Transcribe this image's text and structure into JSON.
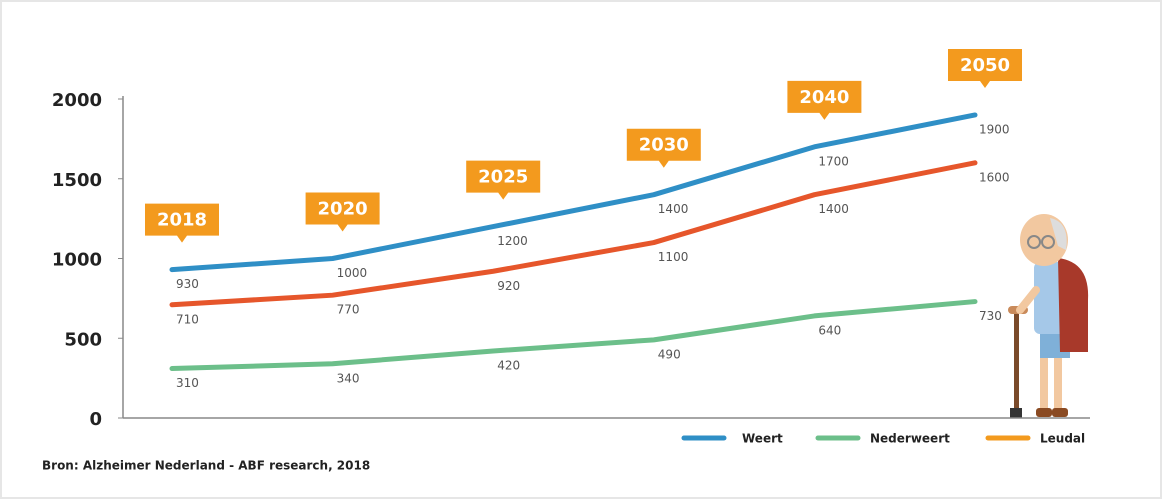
{
  "chart_data": {
    "type": "line",
    "categories": [
      "2018",
      "2020",
      "2025",
      "2030",
      "2040",
      "2050"
    ],
    "series": [
      {
        "name": "Weert",
        "color": "#2f8fc6",
        "legend_color": "#2f8fc6",
        "values": [
          930,
          1000,
          1200,
          1400,
          1700,
          1900
        ]
      },
      {
        "name": "Nederweert",
        "color": "#6cbf8a",
        "legend_color": "#6cbf8a",
        "values": [
          310,
          340,
          420,
          490,
          640,
          730
        ]
      },
      {
        "name": "Leudal",
        "color": "#e6562b",
        "legend_color": "#f39a1e",
        "values": [
          710,
          770,
          920,
          1100,
          1400,
          1600
        ]
      }
    ],
    "ylim": [
      0,
      2000
    ],
    "yticks": [
      0,
      500,
      1000,
      1500,
      2000
    ],
    "badge_color": "#f39a1e",
    "source": "Bron: Alzheimer Nederland - ABF research, 2018"
  }
}
